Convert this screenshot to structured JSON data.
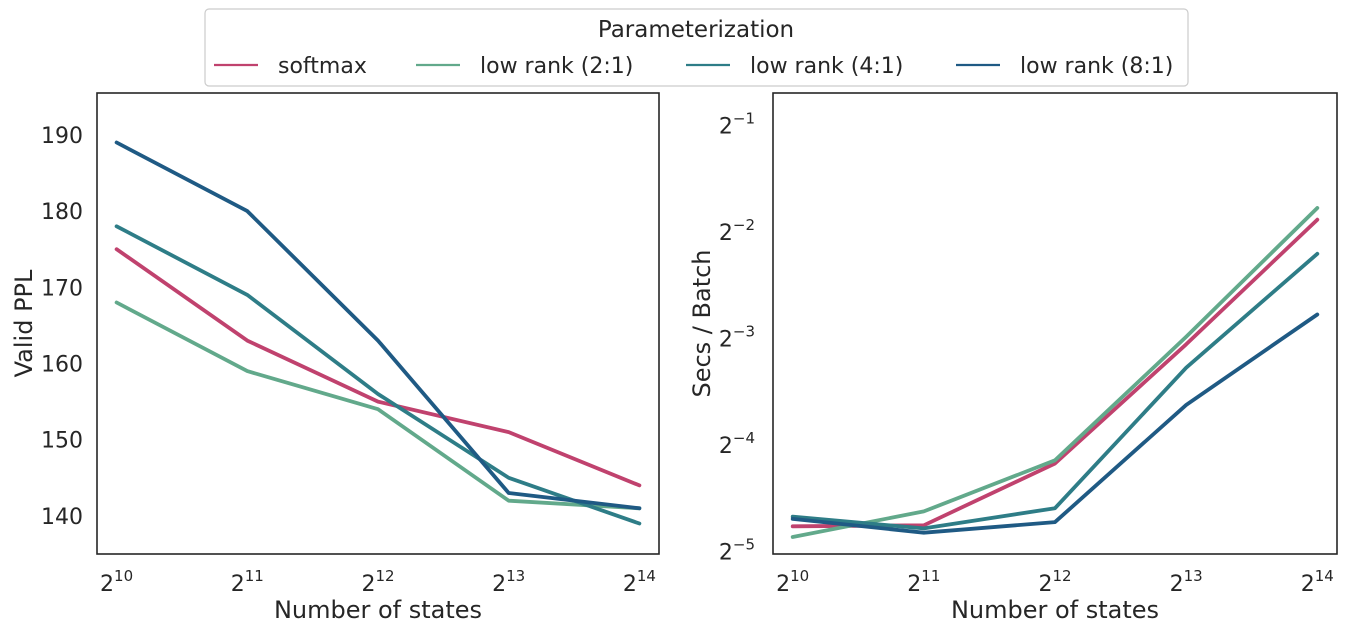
{
  "legend": {
    "title": "Parameterization",
    "entries": [
      {
        "label": "softmax",
        "color": "#c0426e"
      },
      {
        "label": "low rank (2:1)",
        "color": "#62a98b"
      },
      {
        "label": "low rank (4:1)",
        "color": "#2e7d87"
      },
      {
        "label": "low rank (8:1)",
        "color": "#1f5a84"
      }
    ]
  },
  "chart_data": [
    {
      "type": "line",
      "xlabel": "Number of states",
      "ylabel": "Valid PPL",
      "x": [
        10,
        11,
        12,
        13,
        14
      ],
      "x_tick_labels": [
        {
          "base": "2",
          "exp": "10"
        },
        {
          "base": "2",
          "exp": "11"
        },
        {
          "base": "2",
          "exp": "12"
        },
        {
          "base": "2",
          "exp": "13"
        },
        {
          "base": "2",
          "exp": "14"
        }
      ],
      "x_scale": "log2",
      "xlim": [
        9.85,
        14.15
      ],
      "ylim": [
        135,
        195.5
      ],
      "y_ticks": [
        140,
        150,
        160,
        170,
        180,
        190
      ],
      "y_tick_labels": [
        "140",
        "150",
        "160",
        "170",
        "180",
        "190"
      ],
      "grid": false,
      "series": [
        {
          "name": "softmax",
          "color": "#c0426e",
          "values": [
            175,
            163,
            155,
            151,
            144
          ]
        },
        {
          "name": "low rank (2:1)",
          "color": "#62a98b",
          "values": [
            168,
            159,
            154,
            142,
            141
          ]
        },
        {
          "name": "low rank (4:1)",
          "color": "#2e7d87",
          "values": [
            178,
            169,
            156,
            145,
            139
          ]
        },
        {
          "name": "low rank (8:1)",
          "color": "#1f5a84",
          "values": [
            189,
            180,
            163,
            143,
            141
          ]
        }
      ]
    },
    {
      "type": "line",
      "xlabel": "Number of states",
      "ylabel": "Secs / Batch",
      "x": [
        10,
        11,
        12,
        13,
        14
      ],
      "x_tick_labels": [
        {
          "base": "2",
          "exp": "10"
        },
        {
          "base": "2",
          "exp": "11"
        },
        {
          "base": "2",
          "exp": "12"
        },
        {
          "base": "2",
          "exp": "13"
        },
        {
          "base": "2",
          "exp": "14"
        }
      ],
      "x_scale": "log2",
      "xlim": [
        9.85,
        14.15
      ],
      "y_scale": "log2",
      "ylim_log2": [
        -5.1,
        -0.77
      ],
      "y_ticks_log2": [
        -5,
        -4,
        -3,
        -2,
        -1
      ],
      "y_tick_labels": [
        {
          "base": "2",
          "exp": "−5"
        },
        {
          "base": "2",
          "exp": "−4"
        },
        {
          "base": "2",
          "exp": "−3"
        },
        {
          "base": "2",
          "exp": "−2"
        },
        {
          "base": "2",
          "exp": "−1"
        }
      ],
      "grid": false,
      "series": [
        {
          "name": "softmax",
          "color": "#c0426e",
          "values_log2": [
            -4.84,
            -4.83,
            -4.25,
            -3.13,
            -1.96
          ]
        },
        {
          "name": "low rank (2:1)",
          "color": "#62a98b",
          "values_log2": [
            -4.94,
            -4.7,
            -4.22,
            -3.06,
            -1.85
          ]
        },
        {
          "name": "low rank (4:1)",
          "color": "#2e7d87",
          "values_log2": [
            -4.75,
            -4.86,
            -4.67,
            -3.35,
            -2.28
          ]
        },
        {
          "name": "low rank (8:1)",
          "color": "#1f5a84",
          "values_log2": [
            -4.77,
            -4.9,
            -4.8,
            -3.7,
            -2.85
          ]
        }
      ]
    }
  ]
}
